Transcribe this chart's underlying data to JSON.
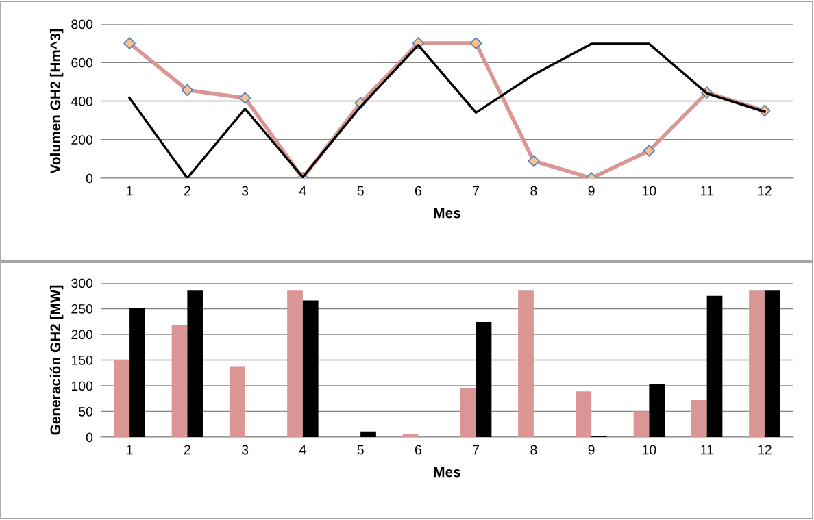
{
  "chart_data": [
    {
      "type": "line",
      "xlabel": "Mes",
      "ylabel": "Volumen GH2 [Hm^3]",
      "categories": [
        "1",
        "2",
        "3",
        "4",
        "5",
        "6",
        "7",
        "8",
        "9",
        "10",
        "11",
        "12"
      ],
      "ylim": [
        0,
        800
      ],
      "yticks": [
        0,
        200,
        400,
        600,
        800
      ],
      "grid": "y",
      "legend": false,
      "series": [
        {
          "color": "#d99694",
          "marker": "diamond",
          "values": [
            700,
            457,
            416,
            0,
            390,
            700,
            700,
            89,
            0,
            142,
            444,
            350
          ]
        },
        {
          "color": "#000000",
          "marker": "none",
          "values": [
            416,
            0,
            360,
            5,
            370,
            690,
            340,
            537,
            697,
            697,
            440,
            345
          ]
        }
      ]
    },
    {
      "type": "bar",
      "xlabel": "Mes",
      "ylabel": "Generación GH2 [MW]",
      "categories": [
        "1",
        "2",
        "3",
        "4",
        "5",
        "6",
        "7",
        "8",
        "9",
        "10",
        "11",
        "12"
      ],
      "ylim": [
        0,
        300
      ],
      "yticks": [
        0,
        50,
        100,
        150,
        200,
        250,
        300
      ],
      "grid": "y",
      "legend": false,
      "series": [
        {
          "color": "#d99694",
          "values": [
            150,
            218,
            138,
            285,
            0,
            6,
            95,
            285,
            89,
            50,
            72,
            285
          ]
        },
        {
          "color": "#000000",
          "values": [
            252,
            285,
            0,
            266,
            11,
            0,
            224,
            0,
            2,
            103,
            275,
            285
          ]
        }
      ]
    }
  ]
}
